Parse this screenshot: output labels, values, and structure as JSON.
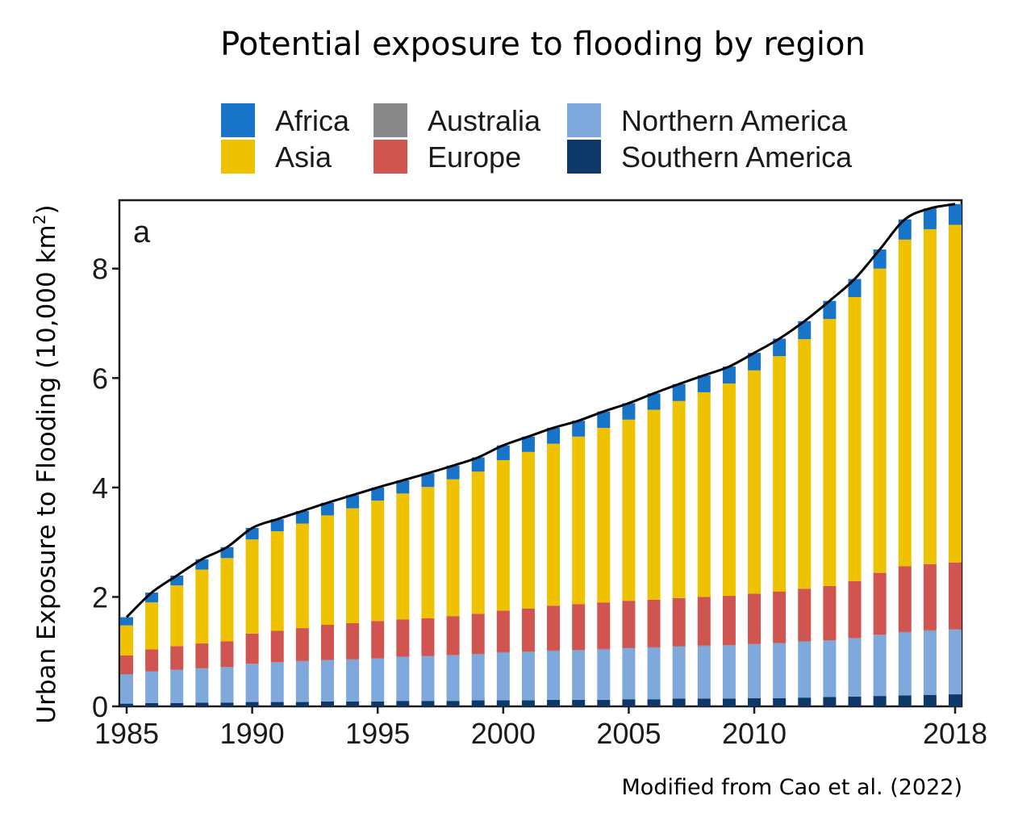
{
  "chart_data": {
    "type": "bar",
    "stacked": true,
    "title": "Potential exposure to flooding by region",
    "ylabel_main": "Urban Exposure to Flooding (10,000 km",
    "ylabel_sup": "2",
    "ylabel_end": ")",
    "panel_label": "a",
    "source_note": "Modified from Cao et al. (2022)",
    "ylim": [
      0,
      9.25
    ],
    "yticks": [
      0,
      2,
      4,
      6,
      8
    ],
    "xticks": [
      1985,
      1990,
      1995,
      2000,
      2005,
      2010,
      2018
    ],
    "legend_position": "top",
    "categories": [
      1985,
      1986,
      1987,
      1988,
      1989,
      1990,
      1991,
      1992,
      1993,
      1994,
      1995,
      1996,
      1997,
      1998,
      1999,
      2000,
      2001,
      2002,
      2003,
      2004,
      2005,
      2006,
      2007,
      2008,
      2009,
      2010,
      2011,
      2012,
      2013,
      2014,
      2015,
      2016,
      2017,
      2018
    ],
    "series": [
      {
        "name": "Southern America",
        "color": "#0d3868",
        "values": [
          0.05,
          0.06,
          0.06,
          0.07,
          0.07,
          0.08,
          0.08,
          0.08,
          0.09,
          0.09,
          0.09,
          0.1,
          0.1,
          0.1,
          0.11,
          0.11,
          0.11,
          0.12,
          0.12,
          0.12,
          0.13,
          0.13,
          0.14,
          0.14,
          0.14,
          0.15,
          0.15,
          0.16,
          0.17,
          0.18,
          0.19,
          0.2,
          0.21,
          0.22
        ]
      },
      {
        "name": "Northern America",
        "color": "#7fa8dc",
        "values": [
          0.53,
          0.57,
          0.6,
          0.62,
          0.64,
          0.69,
          0.72,
          0.74,
          0.75,
          0.76,
          0.78,
          0.8,
          0.81,
          0.83,
          0.84,
          0.87,
          0.88,
          0.89,
          0.9,
          0.92,
          0.93,
          0.94,
          0.95,
          0.96,
          0.97,
          0.98,
          1.0,
          1.02,
          1.03,
          1.06,
          1.11,
          1.15,
          1.17,
          1.18
        ]
      },
      {
        "name": "Australia",
        "color": "#888888",
        "values": [
          0.01,
          0.01,
          0.01,
          0.01,
          0.01,
          0.01,
          0.01,
          0.01,
          0.01,
          0.01,
          0.01,
          0.01,
          0.01,
          0.01,
          0.01,
          0.01,
          0.01,
          0.01,
          0.01,
          0.01,
          0.01,
          0.01,
          0.01,
          0.01,
          0.01,
          0.01,
          0.01,
          0.01,
          0.01,
          0.01,
          0.01,
          0.01,
          0.01,
          0.01
        ]
      },
      {
        "name": "Europe",
        "color": "#d0544f",
        "values": [
          0.34,
          0.4,
          0.43,
          0.45,
          0.47,
          0.55,
          0.57,
          0.6,
          0.64,
          0.66,
          0.68,
          0.68,
          0.69,
          0.71,
          0.73,
          0.76,
          0.79,
          0.82,
          0.84,
          0.85,
          0.86,
          0.87,
          0.88,
          0.89,
          0.9,
          0.92,
          0.94,
          0.96,
          0.99,
          1.04,
          1.13,
          1.2,
          1.21,
          1.22
        ]
      },
      {
        "name": "Asia",
        "color": "#efc200",
        "values": [
          0.55,
          0.86,
          1.11,
          1.35,
          1.52,
          1.72,
          1.82,
          1.91,
          2.0,
          2.1,
          2.2,
          2.3,
          2.4,
          2.5,
          2.6,
          2.75,
          2.86,
          2.96,
          3.06,
          3.19,
          3.31,
          3.47,
          3.6,
          3.74,
          3.88,
          4.08,
          4.3,
          4.56,
          4.88,
          5.19,
          5.56,
          5.97,
          6.12,
          6.17
        ]
      },
      {
        "name": "Africa",
        "color": "#1874c8",
        "values": [
          0.15,
          0.18,
          0.18,
          0.19,
          0.2,
          0.21,
          0.22,
          0.23,
          0.23,
          0.24,
          0.24,
          0.24,
          0.25,
          0.25,
          0.26,
          0.27,
          0.28,
          0.29,
          0.29,
          0.3,
          0.3,
          0.3,
          0.31,
          0.31,
          0.31,
          0.32,
          0.32,
          0.33,
          0.33,
          0.33,
          0.35,
          0.37,
          0.38,
          0.38
        ]
      }
    ],
    "total_line": [
      1.63,
      2.08,
      2.39,
      2.69,
      2.91,
      3.26,
      3.42,
      3.57,
      3.72,
      3.86,
      4.0,
      4.13,
      4.26,
      4.4,
      4.55,
      4.77,
      4.93,
      5.09,
      5.22,
      5.39,
      5.54,
      5.72,
      5.89,
      6.05,
      6.21,
      6.46,
      6.72,
      7.04,
      7.41,
      7.81,
      8.35,
      8.9,
      9.1,
      9.18
    ]
  },
  "legend": [
    {
      "label": "Africa",
      "color": "#1874c8"
    },
    {
      "label": "Asia",
      "color": "#efc200"
    },
    {
      "label": "Australia",
      "color": "#888888"
    },
    {
      "label": "Europe",
      "color": "#d0544f"
    },
    {
      "label": "Northern America",
      "color": "#7fa8dc"
    },
    {
      "label": "Southern America",
      "color": "#0d3868"
    }
  ]
}
